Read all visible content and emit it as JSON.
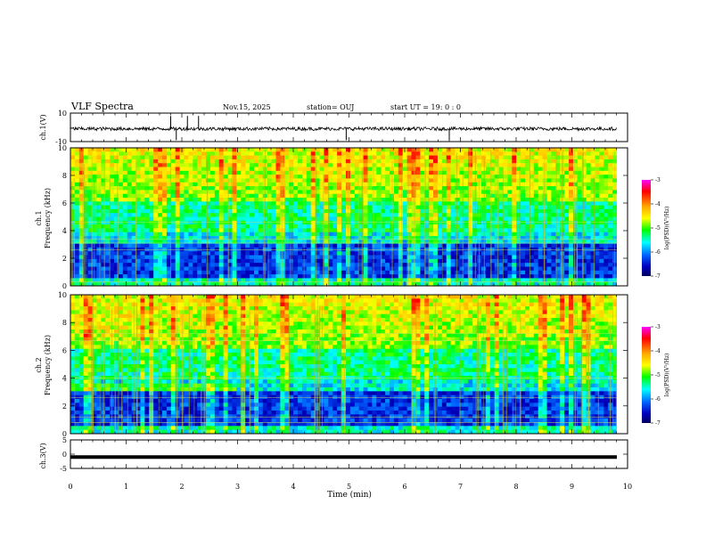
{
  "header": {
    "title": "VLF Spectra",
    "date": "Nov.15, 2025",
    "station": "station= OUJ",
    "start_ut": "start  UT  =   19: 0  : 0"
  },
  "panels": {
    "ch1_wave_label": "ch.1(V)",
    "ch1_spec_label": "ch.1\nFrequency  (kHz)",
    "ch2_spec_label": "ch.2\nFrequency  (kHz)",
    "ch3_wave_label": "ch.3(V)"
  },
  "colorbar": {
    "label": "log(PSD)(V²/Hz)",
    "ticks": [
      "-3",
      "-4",
      "-5",
      "-6",
      "-7"
    ],
    "colors": [
      "#ff00ff",
      "#ff0000",
      "#ffaa00",
      "#ffff00",
      "#00ff00",
      "#00ffff",
      "#0066ff",
      "#0000c0",
      "#000060"
    ]
  },
  "chart_data": [
    {
      "type": "line",
      "name": "ch1_waveform",
      "ylabel": "ch.1(V)",
      "ylim": [
        -10,
        10
      ],
      "yticks": [
        "10",
        "-10"
      ],
      "xlim": [
        0,
        10
      ],
      "baseline": 0,
      "description_values": {
        "spikes_min": [
          1.8,
          1.9,
          2.1,
          2.3,
          4.95,
          6.8
        ]
      }
    },
    {
      "type": "heatmap",
      "name": "ch1_spectrogram",
      "ylabel": "Frequency (kHz)",
      "ylim": [
        0,
        10
      ],
      "yticks": [
        "0",
        "2",
        "4",
        "6",
        "8",
        "10"
      ],
      "xlim": [
        0,
        10
      ],
      "color_range": [
        -7,
        -3
      ]
    },
    {
      "type": "heatmap",
      "name": "ch2_spectrogram",
      "ylabel": "Frequency (kHz)",
      "ylim": [
        0,
        10
      ],
      "yticks": [
        "0",
        "2",
        "4",
        "6",
        "8",
        "10"
      ],
      "xlim": [
        0,
        10
      ],
      "color_range": [
        -7,
        -3
      ]
    },
    {
      "type": "line",
      "name": "ch3_waveform",
      "ylabel": "ch.3(V)",
      "ylim": [
        -5,
        5
      ],
      "yticks": [
        "5",
        "0",
        "-5"
      ],
      "xlim": [
        0,
        10
      ],
      "constant_value": -1
    }
  ],
  "xaxis": {
    "label": "Time  (min)",
    "ticks": [
      "0",
      "1",
      "2",
      "3",
      "4",
      "5",
      "6",
      "7",
      "8",
      "9",
      "10"
    ]
  }
}
